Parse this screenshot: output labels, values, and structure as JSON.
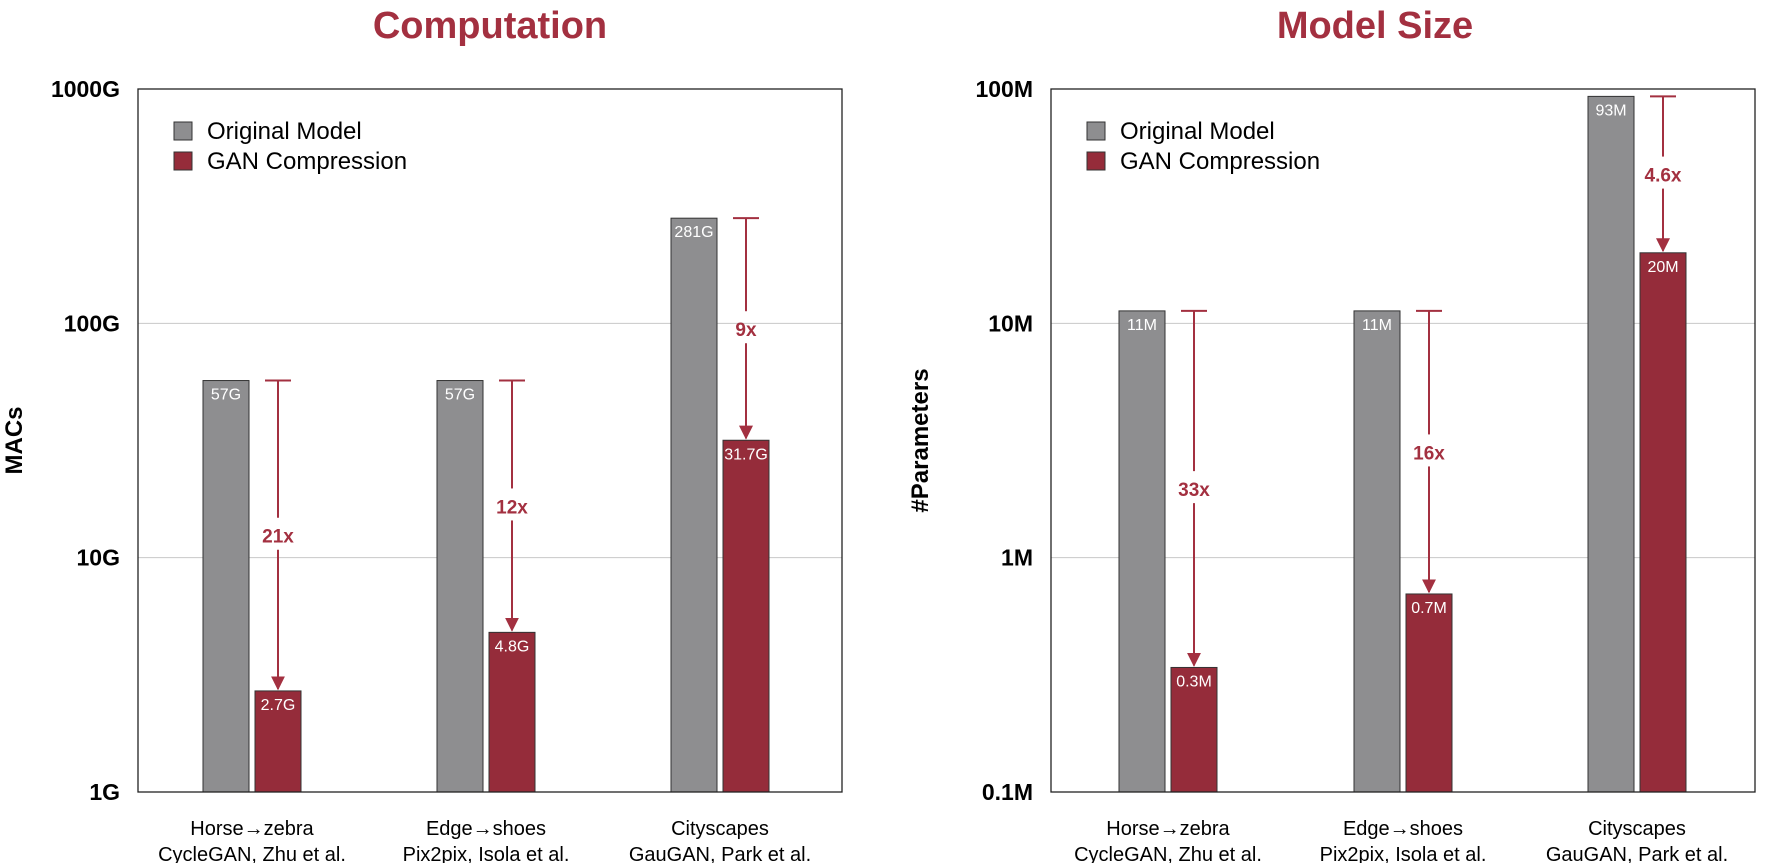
{
  "colors": {
    "original": "#8e8e90",
    "compressed": "#952c3a",
    "accent": "#a33040",
    "grid": "#c8c8c8"
  },
  "chart_data": [
    {
      "type": "bar",
      "title": "Computation",
      "ylabel": "MACs",
      "yscale": "log",
      "ylim": [
        1,
        1000
      ],
      "yticks": [
        1,
        10,
        100,
        1000
      ],
      "ytick_labels": [
        "1G",
        "10G",
        "100G",
        "1000G"
      ],
      "categories": [
        "Horse→zebra|CycleGAN, Zhu et al.",
        "Edge→shoes|Pix2pix, Isola et al.",
        "Cityscapes|GauGAN, Park et al."
      ],
      "category_lines": [
        [
          "Horse→zebra",
          "CycleGAN, Zhu et al."
        ],
        [
          "Edge→shoes",
          "Pix2pix, Isola et al."
        ],
        [
          "Cityscapes",
          "GauGAN, Park et al."
        ]
      ],
      "legend": [
        "Original Model",
        "GAN Compression"
      ],
      "series": [
        {
          "name": "Original Model",
          "values": [
            57,
            57,
            281
          ],
          "labels": [
            "57G",
            "57G",
            "281G"
          ]
        },
        {
          "name": "GAN Compression",
          "values": [
            2.7,
            4.8,
            31.7
          ],
          "labels": [
            "2.7G",
            "4.8G",
            "31.7G"
          ]
        }
      ],
      "ratios": [
        "21x",
        "12x",
        "9x"
      ]
    },
    {
      "type": "bar",
      "title": "Model Size",
      "ylabel": "#Parameters",
      "yscale": "log",
      "ylim": [
        0.1,
        100
      ],
      "yticks": [
        0.1,
        1,
        10,
        100
      ],
      "ytick_labels": [
        "0.1M",
        "1M",
        "10M",
        "100M"
      ],
      "categories": [
        "Horse→zebra|CycleGAN, Zhu et al.",
        "Edge→shoes|Pix2pix, Isola et al.",
        "Cityscapes|GauGAN, Park et al."
      ],
      "category_lines": [
        [
          "Horse→zebra",
          "CycleGAN, Zhu et al."
        ],
        [
          "Edge→shoes",
          "Pix2pix, Isola et al."
        ],
        [
          "Cityscapes",
          "GauGAN, Park et al."
        ]
      ],
      "legend": [
        "Original Model",
        "GAN Compression"
      ],
      "series": [
        {
          "name": "Original Model",
          "values": [
            11.3,
            11.3,
            93
          ],
          "labels": [
            "11M",
            "11M",
            "93M"
          ]
        },
        {
          "name": "GAN Compression",
          "values": [
            0.34,
            0.7,
            20
          ],
          "labels": [
            "0.3M",
            "0.7M",
            "20M"
          ]
        }
      ],
      "ratios": [
        "33x",
        "16x",
        "4.6x"
      ]
    }
  ]
}
